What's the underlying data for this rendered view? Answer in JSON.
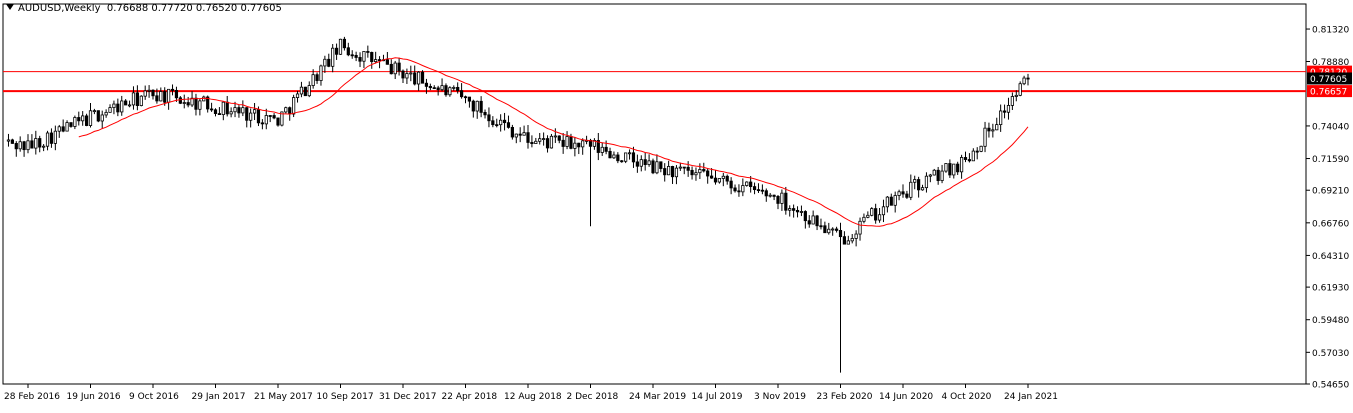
{
  "header": {
    "symbol": "AUDUSD,Weekly",
    "ohlc": "0.76688 0.77720 0.76520 0.77605"
  },
  "colors": {
    "background": "#ffffff",
    "candle": "#000000",
    "moving_average": "#ff0000",
    "horizontal_levels": "#ff0000",
    "current_price_label": "#000000",
    "highlight_candle": "#00cc00"
  },
  "chart_data": {
    "type": "candlestick",
    "title": "AUDUSD,Weekly",
    "price_axis": {
      "ylim": [
        0.5465,
        0.8245
      ],
      "tick_labels": [
        "0.81320",
        "0.78880",
        "0.74040",
        "0.71590",
        "0.69210",
        "0.66760",
        "0.64310",
        "0.61930",
        "0.59480",
        "0.57030",
        "0.54650"
      ]
    },
    "time_axis": {
      "tick_labels": [
        "28 Feb 2016",
        "19 Jun 2016",
        "9 Oct 2016",
        "29 Jan 2017",
        "21 May 2017",
        "10 Sep 2017",
        "31 Dec 2017",
        "22 Apr 2018",
        "12 Aug 2018",
        "2 Dec 2018",
        "24 Mar 2019",
        "14 Jul 2019",
        "3 Nov 2019",
        "23 Feb 2020",
        "14 Jun 2020",
        "4 Oct 2020",
        "24 Jan 2021"
      ]
    },
    "current_price": {
      "label": "0.77605",
      "value": 0.77605
    },
    "horizontal_levels": [
      {
        "label": "0.78120",
        "value": 0.7812
      },
      {
        "label": "0.76657",
        "value": 0.76657
      }
    ],
    "close_anchors": [
      [
        "28 Feb 2016",
        0.725
      ],
      [
        "19 Jun 2016",
        0.747
      ],
      [
        "9 Oct 2016",
        0.765
      ],
      [
        "29 Jan 2017",
        0.755
      ],
      [
        "21 May 2017",
        0.745
      ],
      [
        "10 Sep 2017",
        0.8
      ],
      [
        "31 Dec 2017",
        0.78
      ],
      [
        "22 Apr 2018",
        0.76
      ],
      [
        "12 Aug 2018",
        0.73
      ],
      [
        "2 Dec 2018",
        0.725
      ],
      [
        "24 Mar 2019",
        0.709
      ],
      [
        "14 Jul 2019",
        0.7
      ],
      [
        "3 Nov 2019",
        0.687
      ],
      [
        "23 Feb 2020",
        0.655
      ],
      [
        "14 Jun 2020",
        0.69
      ],
      [
        "4 Oct 2020",
        0.715
      ],
      [
        "24 Jan 2021",
        0.776
      ]
    ],
    "low_spikes": [
      [
        "2 Dec 2018",
        0.665
      ],
      [
        "23 Feb 2020",
        0.555
      ]
    ],
    "series": [
      {
        "type": "candlestick"
      },
      {
        "type": "line",
        "smoothing": "moving average"
      }
    ],
    "grid": false,
    "legend": "none"
  }
}
